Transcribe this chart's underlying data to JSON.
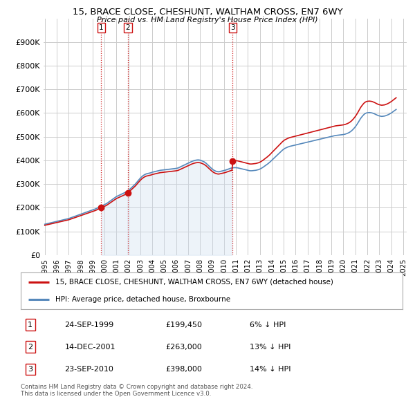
{
  "title": "15, BRACE CLOSE, CHESHUNT, WALTHAM CROSS, EN7 6WY",
  "subtitle": "Price paid vs. HM Land Registry's House Price Index (HPI)",
  "hpi_color": "#5588bb",
  "price_color": "#cc1111",
  "vline_color": "#cc1111",
  "shade_color": "#ccddf0",
  "background_color": "#ffffff",
  "grid_color": "#cccccc",
  "transactions": [
    {
      "label": "1",
      "year": 1999.73,
      "price": 199450,
      "hpi_index": 205000
    },
    {
      "label": "2",
      "year": 2001.96,
      "price": 263000,
      "hpi_index": 259000
    },
    {
      "label": "3",
      "year": 2010.73,
      "price": 398000,
      "hpi_index": 368000
    }
  ],
  "legend_entries": [
    "15, BRACE CLOSE, CHESHUNT, WALTHAM CROSS, EN7 6WY (detached house)",
    "HPI: Average price, detached house, Broxbourne"
  ],
  "table_rows": [
    [
      "1",
      "24-SEP-1999",
      "£199,450",
      "6% ↓ HPI"
    ],
    [
      "2",
      "14-DEC-2001",
      "£263,000",
      "13% ↓ HPI"
    ],
    [
      "3",
      "23-SEP-2010",
      "£398,000",
      "14% ↓ HPI"
    ]
  ],
  "footnote": "Contains HM Land Registry data © Crown copyright and database right 2024.\nThis data is licensed under the Open Government Licence v3.0.",
  "hpi_years": [
    1995.0,
    1995.083,
    1995.167,
    1995.25,
    1995.333,
    1995.417,
    1995.5,
    1995.583,
    1995.667,
    1995.75,
    1995.833,
    1995.917,
    1996.0,
    1996.083,
    1996.167,
    1996.25,
    1996.333,
    1996.417,
    1996.5,
    1996.583,
    1996.667,
    1996.75,
    1996.833,
    1996.917,
    1997.0,
    1997.083,
    1997.167,
    1997.25,
    1997.333,
    1997.417,
    1997.5,
    1997.583,
    1997.667,
    1997.75,
    1997.833,
    1997.917,
    1998.0,
    1998.083,
    1998.167,
    1998.25,
    1998.333,
    1998.417,
    1998.5,
    1998.583,
    1998.667,
    1998.75,
    1998.833,
    1998.917,
    1999.0,
    1999.083,
    1999.167,
    1999.25,
    1999.333,
    1999.417,
    1999.5,
    1999.583,
    1999.667,
    1999.75,
    1999.833,
    1999.917,
    2000.0,
    2000.083,
    2000.167,
    2000.25,
    2000.333,
    2000.417,
    2000.5,
    2000.583,
    2000.667,
    2000.75,
    2000.833,
    2000.917,
    2001.0,
    2001.083,
    2001.167,
    2001.25,
    2001.333,
    2001.417,
    2001.5,
    2001.583,
    2001.667,
    2001.75,
    2001.833,
    2001.917,
    2002.0,
    2002.083,
    2002.167,
    2002.25,
    2002.333,
    2002.417,
    2002.5,
    2002.583,
    2002.667,
    2002.75,
    2002.833,
    2002.917,
    2003.0,
    2003.083,
    2003.167,
    2003.25,
    2003.333,
    2003.417,
    2003.5,
    2003.583,
    2003.667,
    2003.75,
    2003.833,
    2003.917,
    2004.0,
    2004.083,
    2004.167,
    2004.25,
    2004.333,
    2004.417,
    2004.5,
    2004.583,
    2004.667,
    2004.75,
    2004.833,
    2004.917,
    2005.0,
    2005.083,
    2005.167,
    2005.25,
    2005.333,
    2005.417,
    2005.5,
    2005.583,
    2005.667,
    2005.75,
    2005.833,
    2005.917,
    2006.0,
    2006.083,
    2006.167,
    2006.25,
    2006.333,
    2006.417,
    2006.5,
    2006.583,
    2006.667,
    2006.75,
    2006.833,
    2006.917,
    2007.0,
    2007.083,
    2007.167,
    2007.25,
    2007.333,
    2007.417,
    2007.5,
    2007.583,
    2007.667,
    2007.75,
    2007.833,
    2007.917,
    2008.0,
    2008.083,
    2008.167,
    2008.25,
    2008.333,
    2008.417,
    2008.5,
    2008.583,
    2008.667,
    2008.75,
    2008.833,
    2008.917,
    2009.0,
    2009.083,
    2009.167,
    2009.25,
    2009.333,
    2009.417,
    2009.5,
    2009.583,
    2009.667,
    2009.75,
    2009.833,
    2009.917,
    2010.0,
    2010.083,
    2010.167,
    2010.25,
    2010.333,
    2010.417,
    2010.5,
    2010.583,
    2010.667,
    2010.75,
    2010.833,
    2010.917,
    2011.0,
    2011.083,
    2011.167,
    2011.25,
    2011.333,
    2011.417,
    2011.5,
    2011.583,
    2011.667,
    2011.75,
    2011.833,
    2011.917,
    2012.0,
    2012.083,
    2012.167,
    2012.25,
    2012.333,
    2012.417,
    2012.5,
    2012.583,
    2012.667,
    2012.75,
    2012.833,
    2012.917,
    2013.0,
    2013.083,
    2013.167,
    2013.25,
    2013.333,
    2013.417,
    2013.5,
    2013.583,
    2013.667,
    2013.75,
    2013.833,
    2013.917,
    2014.0,
    2014.083,
    2014.167,
    2014.25,
    2014.333,
    2014.417,
    2014.5,
    2014.583,
    2014.667,
    2014.75,
    2014.833,
    2014.917,
    2015.0,
    2015.083,
    2015.167,
    2015.25,
    2015.333,
    2015.417,
    2015.5,
    2015.583,
    2015.667,
    2015.75,
    2015.833,
    2015.917,
    2016.0,
    2016.083,
    2016.167,
    2016.25,
    2016.333,
    2016.417,
    2016.5,
    2016.583,
    2016.667,
    2016.75,
    2016.833,
    2016.917,
    2017.0,
    2017.083,
    2017.167,
    2017.25,
    2017.333,
    2017.417,
    2017.5,
    2017.583,
    2017.667,
    2017.75,
    2017.833,
    2017.917,
    2018.0,
    2018.083,
    2018.167,
    2018.25,
    2018.333,
    2018.417,
    2018.5,
    2018.583,
    2018.667,
    2018.75,
    2018.833,
    2018.917,
    2019.0,
    2019.083,
    2019.167,
    2019.25,
    2019.333,
    2019.417,
    2019.5,
    2019.583,
    2019.667,
    2019.75,
    2019.833,
    2019.917,
    2020.0,
    2020.083,
    2020.167,
    2020.25,
    2020.333,
    2020.417,
    2020.5,
    2020.583,
    2020.667,
    2020.75,
    2020.833,
    2020.917,
    2021.0,
    2021.083,
    2021.167,
    2021.25,
    2021.333,
    2021.417,
    2021.5,
    2021.583,
    2021.667,
    2021.75,
    2021.833,
    2021.917,
    2022.0,
    2022.083,
    2022.167,
    2022.25,
    2022.333,
    2022.417,
    2022.5,
    2022.583,
    2022.667,
    2022.75,
    2022.833,
    2022.917,
    2023.0,
    2023.083,
    2023.167,
    2023.25,
    2023.333,
    2023.417,
    2023.5,
    2023.583,
    2023.667,
    2023.75,
    2023.833,
    2023.917,
    2024.0,
    2024.083,
    2024.167,
    2024.25,
    2024.333,
    2024.417
  ],
  "hpi_values": [
    130000,
    131000,
    132000,
    133000,
    134000,
    135000,
    136000,
    137000,
    138000,
    139000,
    140000,
    141000,
    142000,
    143000,
    144000,
    145000,
    146000,
    147000,
    148000,
    149000,
    150000,
    151000,
    152000,
    153000,
    154000,
    155500,
    157000,
    158500,
    160000,
    161500,
    163000,
    164500,
    166000,
    167500,
    169000,
    170500,
    172000,
    173500,
    175000,
    176500,
    178000,
    179500,
    181000,
    182500,
    184000,
    185500,
    187000,
    188500,
    190000,
    191500,
    193000,
    195000,
    197000,
    199000,
    201000,
    203000,
    205000,
    207000,
    209000,
    211000,
    213000,
    215000,
    217000,
    220000,
    223000,
    226000,
    229000,
    232000,
    235000,
    238000,
    241000,
    244000,
    247000,
    249000,
    251000,
    253000,
    255000,
    257000,
    259000,
    261000,
    263000,
    265000,
    267000,
    269000,
    272000,
    276000,
    280000,
    284000,
    288000,
    292000,
    296000,
    300000,
    305000,
    310000,
    315000,
    320000,
    325000,
    329000,
    333000,
    336000,
    339000,
    341000,
    343000,
    344000,
    345000,
    346000,
    347000,
    348000,
    350000,
    351000,
    352000,
    353000,
    354000,
    355000,
    356000,
    357000,
    358000,
    358500,
    359000,
    359500,
    360000,
    360500,
    361000,
    361500,
    362000,
    362500,
    363000,
    363500,
    364000,
    364500,
    365000,
    365500,
    366000,
    367000,
    368000,
    370000,
    372000,
    374000,
    376000,
    378000,
    380000,
    382000,
    384000,
    386000,
    388000,
    390000,
    392000,
    394000,
    396000,
    397500,
    399000,
    400000,
    401000,
    401500,
    402000,
    401500,
    401000,
    399500,
    398000,
    396000,
    394000,
    391000,
    388000,
    384000,
    380000,
    376000,
    372000,
    368000,
    364000,
    361000,
    358000,
    356000,
    354000,
    353000,
    352000,
    352000,
    353000,
    354000,
    355000,
    356000,
    357000,
    358000,
    359500,
    361000,
    362500,
    364000,
    365500,
    367000,
    368000,
    368500,
    369000,
    369000,
    369000,
    368500,
    368000,
    367000,
    366000,
    365000,
    364000,
    363000,
    362000,
    361000,
    360000,
    359000,
    358000,
    357000,
    356000,
    356000,
    356000,
    356500,
    357000,
    357500,
    358000,
    359000,
    360000,
    361000,
    363000,
    365000,
    367500,
    370000,
    373000,
    376000,
    379000,
    382000,
    385000,
    388500,
    392000,
    396000,
    400000,
    404000,
    408000,
    412000,
    416000,
    420000,
    424000,
    428000,
    432000,
    436000,
    440000,
    444000,
    447000,
    450000,
    452000,
    454000,
    456000,
    457500,
    459000,
    460000,
    461000,
    462000,
    463000,
    464000,
    465000,
    466000,
    467000,
    468000,
    469000,
    470000,
    471000,
    472000,
    473000,
    474000,
    475000,
    476000,
    477000,
    478000,
    479000,
    480000,
    481000,
    482000,
    483000,
    484000,
    485000,
    486000,
    487000,
    488000,
    489000,
    490000,
    491000,
    492000,
    493000,
    494000,
    495000,
    496000,
    497000,
    498000,
    499000,
    500000,
    501000,
    502000,
    503000,
    504000,
    505000,
    505500,
    506000,
    506500,
    507000,
    507500,
    508000,
    508500,
    509000,
    510000,
    511000,
    512500,
    514000,
    516000,
    518000,
    521000,
    524000,
    528000,
    532000,
    537000,
    542000,
    548000,
    554000,
    561000,
    568000,
    575000,
    581000,
    586000,
    591000,
    595000,
    598000,
    600000,
    601000,
    601500,
    602000,
    601500,
    601000,
    600000,
    598500,
    597000,
    595000,
    593000,
    591000,
    589000,
    588000,
    587000,
    586000,
    586000,
    586500,
    587000,
    588000,
    589500,
    591000,
    593000,
    595000,
    597500,
    600000,
    603000,
    606000,
    609000,
    612000,
    615000
  ],
  "xlim": [
    1994.9,
    2025.3
  ],
  "ylim": [
    0,
    1000000
  ],
  "yticks": [
    0,
    100000,
    200000,
    300000,
    400000,
    500000,
    600000,
    700000,
    800000,
    900000
  ],
  "ytick_labels": [
    "£0",
    "£100K",
    "£200K",
    "£300K",
    "£400K",
    "£500K",
    "£600K",
    "£700K",
    "£800K",
    "£900K"
  ],
  "xtick_years": [
    1995,
    1996,
    1997,
    1998,
    1999,
    2000,
    2001,
    2002,
    2003,
    2004,
    2005,
    2006,
    2007,
    2008,
    2009,
    2010,
    2011,
    2012,
    2013,
    2014,
    2015,
    2016,
    2017,
    2018,
    2019,
    2020,
    2021,
    2022,
    2023,
    2024,
    2025
  ]
}
